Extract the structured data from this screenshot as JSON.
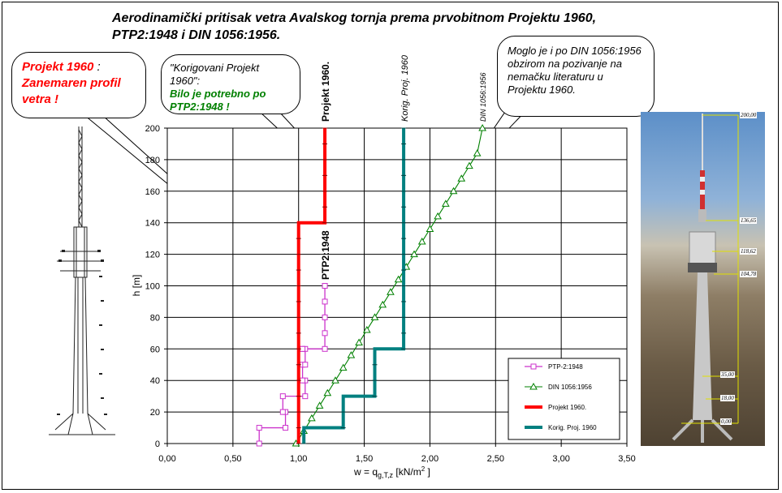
{
  "title": {
    "line1": "Aerodinamički pritisak vetra Avalskog tornja prema prvobitnom Projektu 1960,",
    "line2": "PTP2:1948 i DIN 1056:1956."
  },
  "callouts": {
    "projekt": {
      "head": "Projekt 1960",
      "colon": " :",
      "body": "Zanemaren profil vetra !"
    },
    "korigovani": {
      "quote": "\"Korigovani Projekt 1960\":",
      "body": "Bilo je potrebno po PTP2:1948 !"
    },
    "din": {
      "text": "Moglo je i po DIN 1056:1956 obzirom na pozivanje na nemačku literaturu u Projektu 1960."
    }
  },
  "colors": {
    "ptp": "#cc33cc",
    "din": "#008000",
    "projekt": "#ff0000",
    "korig": "#008080",
    "callout_red": "#ff0000",
    "callout_green": "#008000",
    "dimension_lines": "#e0e000"
  },
  "photo": {
    "heights": [
      "200,00",
      "136,65",
      "118,62",
      "104,78",
      "35,00",
      "18,00",
      "0,00"
    ]
  },
  "chart_data": {
    "type": "line",
    "xlabel": "w = q",
    "xlabel_sub": "g,T,z",
    "xlabel_unit": " [kN/m",
    "xlabel_sup": "2",
    "xlabel_end": " ]",
    "ylabel": "h  [m]",
    "xlim": [
      0,
      3.5
    ],
    "ylim": [
      0,
      200
    ],
    "xticks": [
      "0,00",
      "0,50",
      "1,00",
      "1,50",
      "2,00",
      "2,50",
      "3,00",
      "3,50"
    ],
    "yticks": [
      "0",
      "20",
      "40",
      "60",
      "80",
      "100",
      "120",
      "140",
      "160",
      "180",
      "200"
    ],
    "grid": true,
    "legend_position": "bottom-right",
    "series_labels": {
      "projekt": "Projekt 1960.",
      "ptp": "PTP2:1948",
      "korig": "Korig.  Proj. 1960",
      "din": "DIN 1056:1956"
    },
    "series": [
      {
        "name": "PTP-2:1948",
        "key": "ptp",
        "marker": "square",
        "x": [
          0.7,
          0.7,
          0.9,
          0.9,
          0.88,
          0.88,
          1.05,
          1.05,
          1.03,
          1.03,
          1.05,
          1.05,
          1.03,
          1.03,
          1.2,
          1.2,
          1.2,
          1.2,
          1.2,
          1.2
        ],
        "y": [
          0,
          10,
          10,
          20,
          20,
          30,
          30,
          40,
          40,
          50,
          50,
          60,
          60,
          60,
          60,
          70,
          80,
          90,
          100,
          100
        ]
      },
      {
        "name": "DIN 1056:1956",
        "key": "din",
        "marker": "triangle",
        "x": [
          0.98,
          1.04,
          1.1,
          1.16,
          1.22,
          1.28,
          1.34,
          1.4,
          1.46,
          1.52,
          1.58,
          1.64,
          1.7,
          1.76,
          1.82,
          1.88,
          1.94,
          2.0,
          2.06,
          2.12,
          2.18,
          2.24,
          2.3,
          2.36,
          2.4
        ],
        "y": [
          0,
          8,
          16,
          24,
          32,
          40,
          48,
          56,
          64,
          72,
          80,
          88,
          96,
          104,
          112,
          120,
          128,
          136,
          144,
          152,
          160,
          168,
          176,
          184,
          200
        ]
      },
      {
        "name": "Projekt 1960.",
        "key": "projekt",
        "marker": "none",
        "x": [
          1.0,
          1.0,
          1.2,
          1.2
        ],
        "y": [
          0,
          140,
          140,
          200
        ]
      },
      {
        "name": "Korig.  Proj. 1960",
        "key": "korig",
        "marker": "none",
        "x": [
          1.04,
          1.04,
          1.34,
          1.34,
          1.58,
          1.58,
          1.8,
          1.8
        ],
        "y": [
          0,
          10,
          10,
          30,
          30,
          60,
          60,
          200
        ]
      }
    ]
  }
}
